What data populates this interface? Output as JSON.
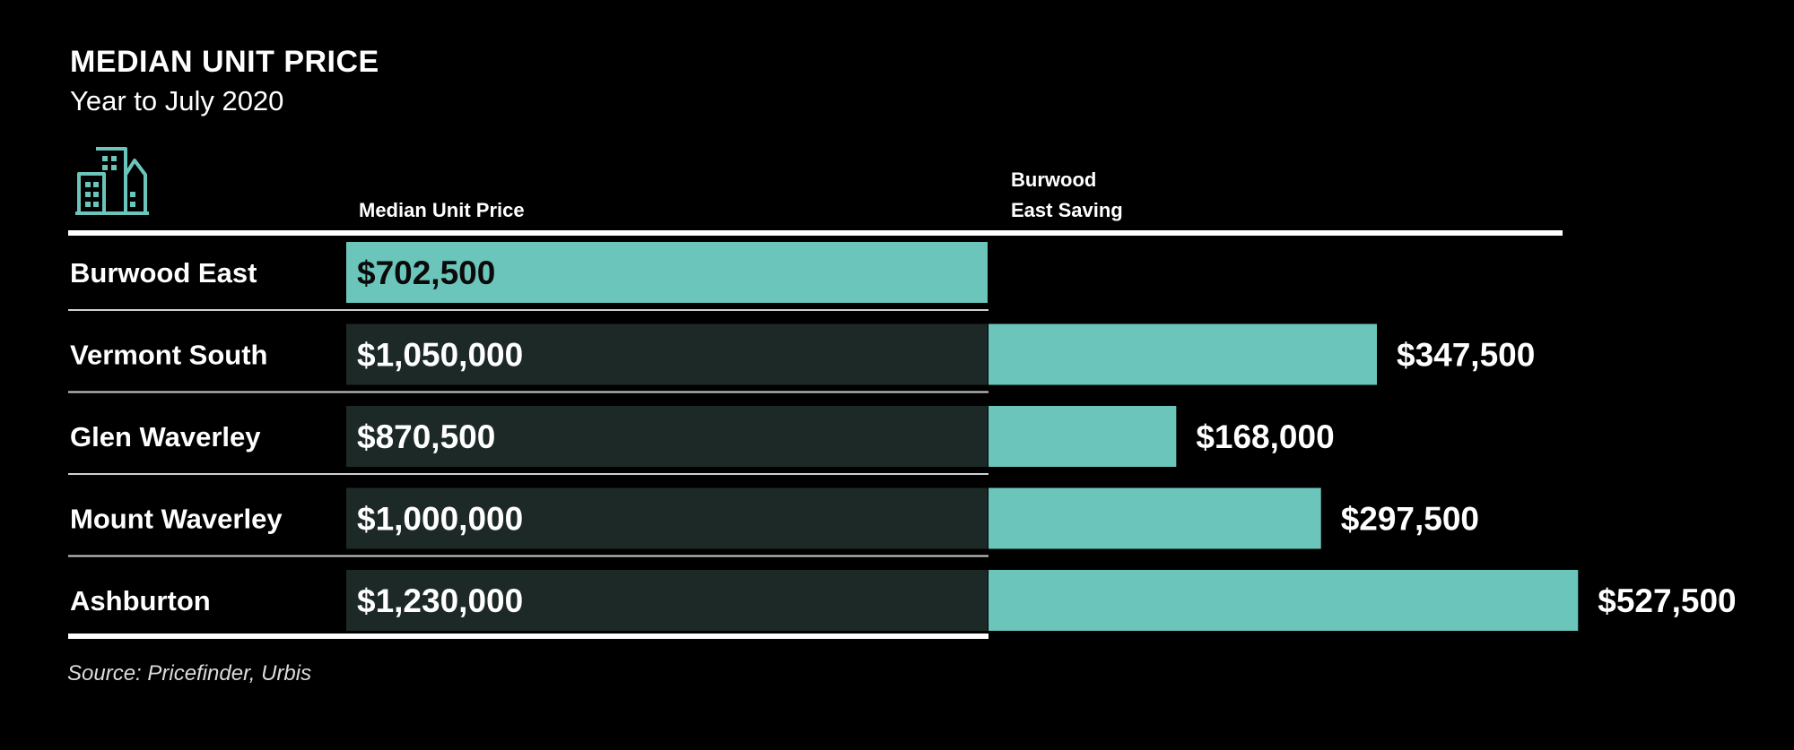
{
  "header": {
    "title": "MEDIAN UNIT PRICE",
    "subtitle": "Year to July  2020"
  },
  "source": "Source: Pricefinder, Urbis",
  "icon": "apartment-buildings-icon",
  "colors": {
    "background": "#000000",
    "accent": "#6cc5ba",
    "track": "#1d2927",
    "text": "#ffffff",
    "label_on_accent": "#0a0a0a"
  },
  "chart_data": {
    "type": "bar",
    "categories": [
      "Burwood East",
      "Vermont South",
      "Glen Waverley",
      "Mount Waverley",
      "Ashburton"
    ],
    "column_headers": {
      "price": "Median Unit Price",
      "saving": [
        "Burwood",
        "East Saving"
      ]
    },
    "series": [
      {
        "name": "Median Unit Price",
        "values": [
          702500,
          1050000,
          870500,
          1000000,
          1230000
        ],
        "labels": [
          "$702,500",
          "$1,050,000",
          "$870,500",
          "$1,000,000",
          "$1,230,000"
        ]
      },
      {
        "name": "Burwood East Saving",
        "values": [
          null,
          347500,
          168000,
          297500,
          527500
        ],
        "labels": [
          "",
          "$347,500",
          "$168,000",
          "$297,500",
          "$527,500"
        ]
      }
    ],
    "highlight_category": "Burwood East"
  }
}
